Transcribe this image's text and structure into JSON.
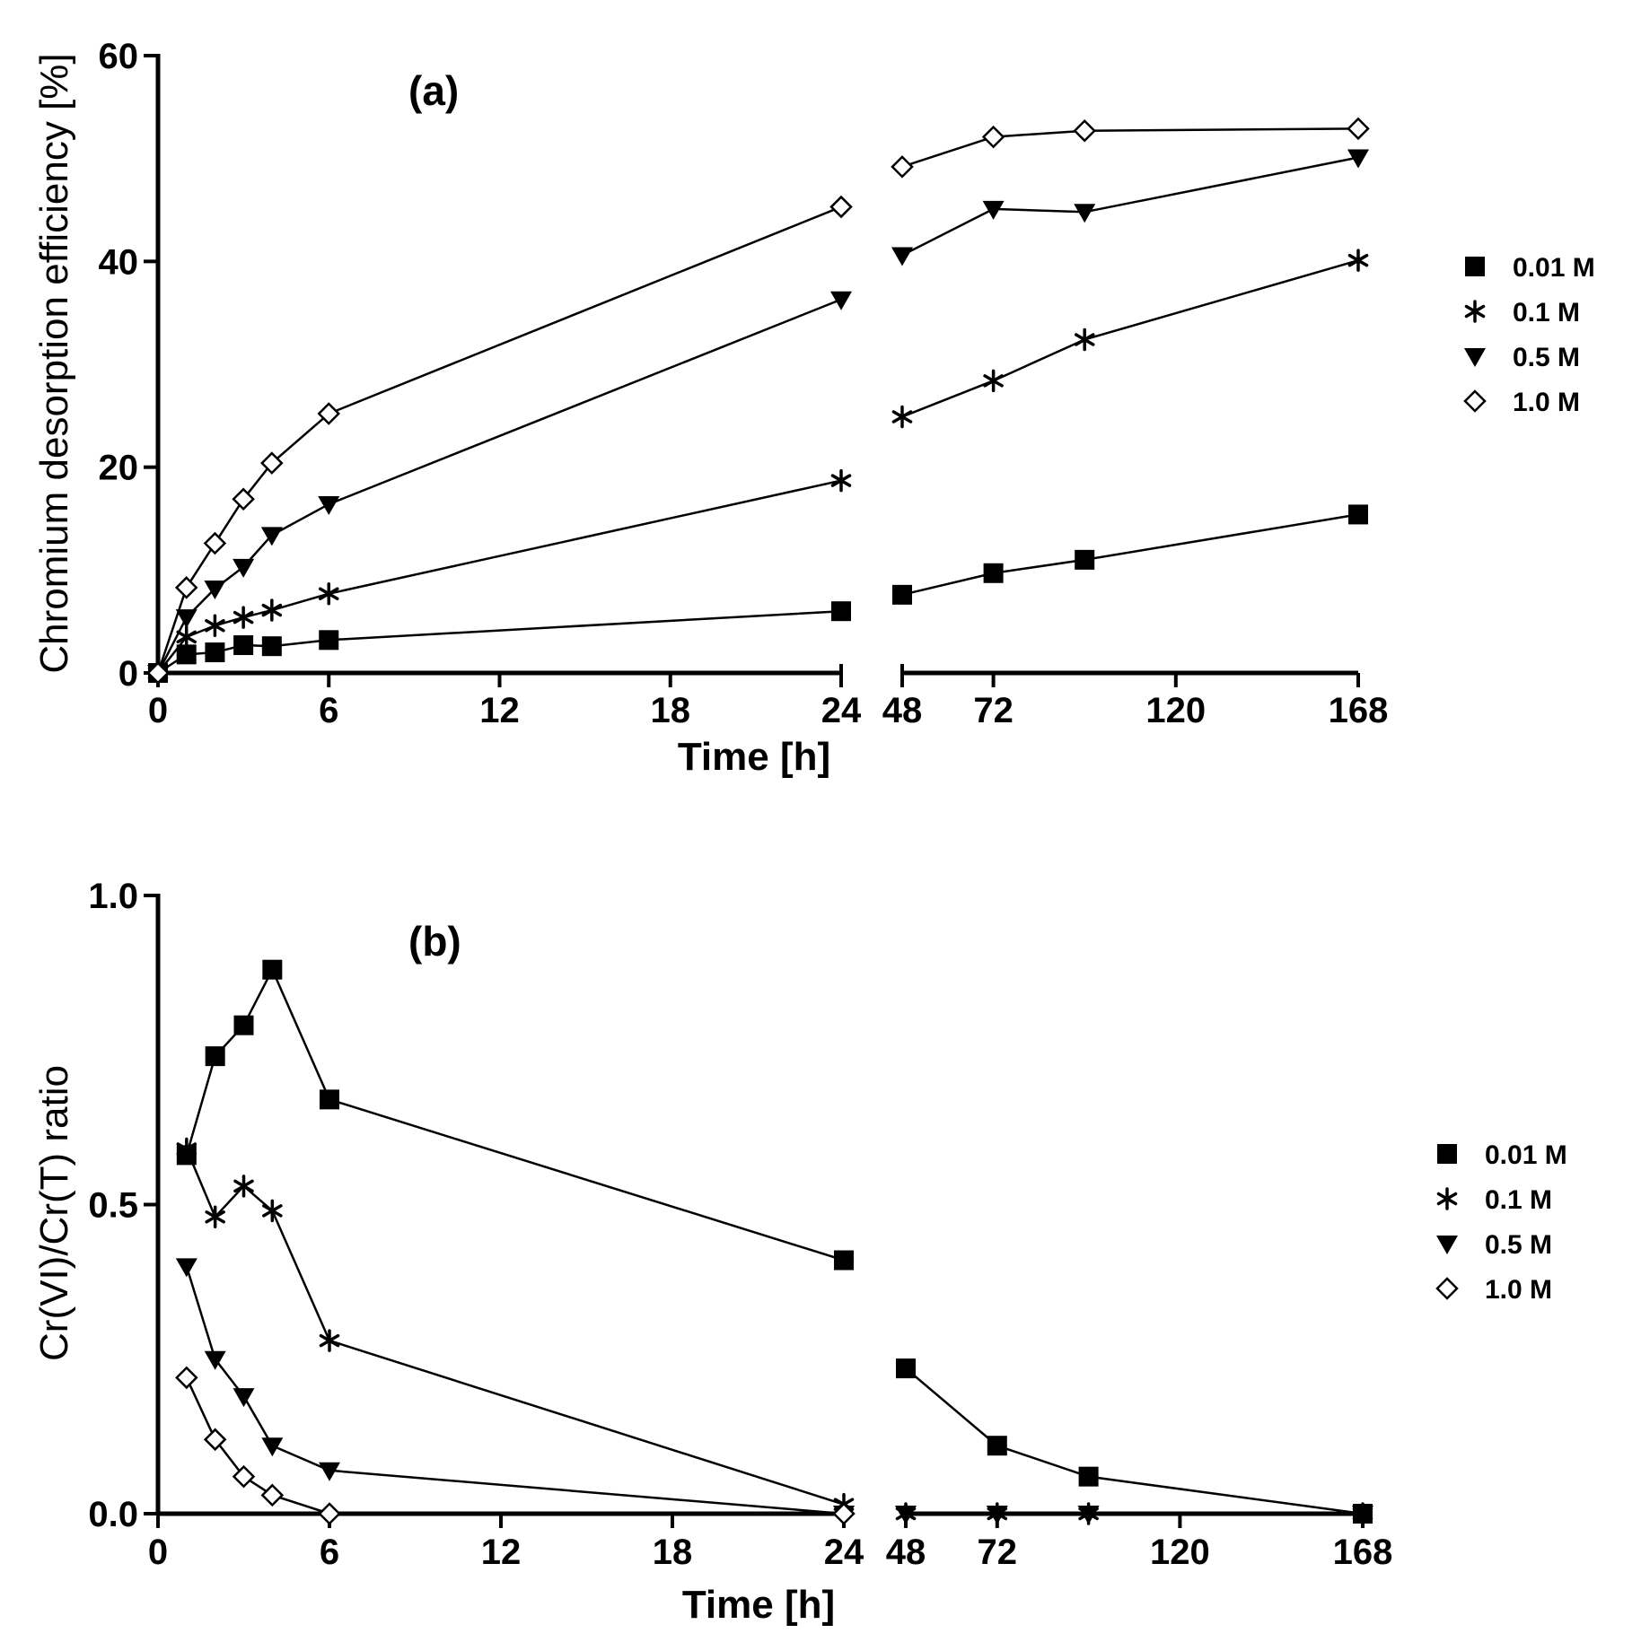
{
  "chart_data": [
    {
      "type": "line",
      "panel_label": "(a)",
      "title": "",
      "xlabel": "Time [h]",
      "ylabel": "Chromium desorption efficiency [%]",
      "ylim": [
        0,
        60
      ],
      "yticks": [
        0,
        20,
        40,
        60
      ],
      "x_segments": [
        {
          "range": [
            0,
            24
          ],
          "ticks": [
            0,
            6,
            12,
            18,
            24
          ]
        },
        {
          "range": [
            48,
            168
          ],
          "ticks": [
            48,
            72,
            120,
            168
          ]
        }
      ],
      "grid": false,
      "legend_position": "right",
      "series": [
        {
          "name": "0.01 M",
          "marker": "square",
          "x": [
            0,
            1,
            2,
            3,
            4,
            6,
            24,
            48,
            72,
            96,
            168
          ],
          "y": [
            0,
            1.8,
            2.0,
            2.7,
            2.6,
            3.2,
            6.0,
            7.6,
            9.7,
            11.0,
            15.4
          ]
        },
        {
          "name": "0.1 M",
          "marker": "asterisk",
          "x": [
            0,
            1,
            2,
            3,
            4,
            6,
            24,
            48,
            72,
            96,
            168
          ],
          "y": [
            0,
            3.5,
            4.6,
            5.4,
            6.1,
            7.7,
            18.7,
            24.9,
            28.4,
            32.4,
            40.1
          ]
        },
        {
          "name": "0.5 M",
          "marker": "triangle-down",
          "x": [
            0,
            1,
            2,
            3,
            4,
            6,
            24,
            48,
            72,
            96,
            168
          ],
          "y": [
            0,
            5.4,
            8.2,
            10.3,
            13.4,
            16.4,
            36.3,
            40.6,
            45.1,
            44.8,
            50.1
          ]
        },
        {
          "name": "1.0 M",
          "marker": "diamond-open",
          "x": [
            0,
            1,
            2,
            3,
            4,
            6,
            24,
            48,
            72,
            96,
            168
          ],
          "y": [
            0,
            8.3,
            12.6,
            16.9,
            20.4,
            25.2,
            45.3,
            49.2,
            52.1,
            52.7,
            52.9
          ]
        }
      ]
    },
    {
      "type": "line",
      "panel_label": "(b)",
      "title": "",
      "xlabel": "Time [h]",
      "ylabel": "Cr(VI)/Cr(T) ratio",
      "ylim": [
        0,
        1.0
      ],
      "yticks": [
        0.0,
        0.5,
        1.0
      ],
      "x_segments": [
        {
          "range": [
            0,
            24
          ],
          "ticks": [
            0,
            6,
            12,
            18,
            24
          ]
        },
        {
          "range": [
            48,
            168
          ],
          "ticks": [
            48,
            72,
            120,
            168
          ]
        }
      ],
      "grid": false,
      "legend_position": "right",
      "series": [
        {
          "name": "0.01 M",
          "marker": "square",
          "x": [
            1,
            2,
            3,
            4,
            6,
            24,
            48,
            72,
            96,
            168
          ],
          "y": [
            0.58,
            0.74,
            0.79,
            0.88,
            0.67,
            0.41,
            0.235,
            0.11,
            0.06,
            0.0
          ]
        },
        {
          "name": "0.1 M",
          "marker": "asterisk",
          "x": [
            1,
            2,
            3,
            4,
            6,
            24,
            48,
            72,
            96,
            168
          ],
          "y": [
            0.59,
            0.48,
            0.53,
            0.49,
            0.28,
            0.015,
            0.0,
            0.0,
            0.0,
            0.0
          ]
        },
        {
          "name": "0.5 M",
          "marker": "triangle-down",
          "x": [
            1,
            2,
            3,
            4,
            6,
            24,
            48,
            72,
            96,
            168
          ],
          "y": [
            0.4,
            0.25,
            0.19,
            0.11,
            0.07,
            0.0,
            0.0,
            0.0,
            0.0,
            0.0
          ]
        },
        {
          "name": "1.0 M",
          "marker": "diamond-open",
          "x": [
            1,
            2,
            3,
            4,
            6,
            24
          ],
          "y": [
            0.22,
            0.12,
            0.06,
            0.03,
            0.0,
            0.0
          ]
        }
      ]
    }
  ]
}
